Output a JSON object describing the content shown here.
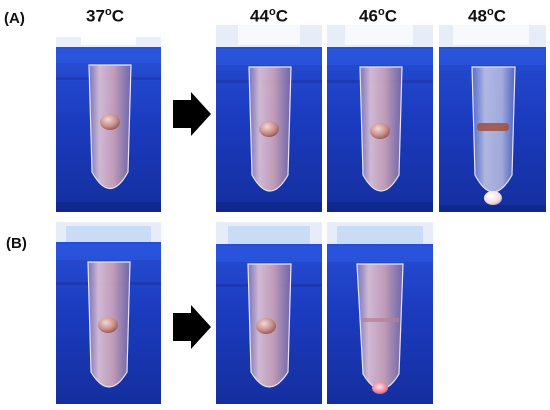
{
  "figure": {
    "panel_a": {
      "label": "(A)",
      "temperatures": [
        {
          "value": "37",
          "degree": "o",
          "unit": "C"
        },
        {
          "value": "44",
          "degree": "o",
          "unit": "C"
        },
        {
          "value": "46",
          "degree": "o",
          "unit": "C"
        },
        {
          "value": "48",
          "degree": "o",
          "unit": "C"
        }
      ],
      "photos": [
        "tube-photo",
        "tube-photo",
        "tube-photo",
        "tube-photo-bead-sunk"
      ]
    },
    "panel_b": {
      "label": "(B)",
      "photos": [
        "tube-photo",
        "tube-photo",
        "tube-photo-bead-sunk"
      ]
    },
    "colors": {
      "water_blue": "#1f3fc8",
      "liquid_pink": "#c9a0b8",
      "arrow": "#000000"
    },
    "icons": [
      "right-arrow-icon"
    ]
  }
}
